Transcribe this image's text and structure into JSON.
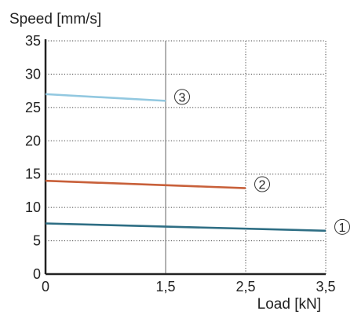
{
  "chart_data": {
    "type": "line",
    "ylabel": "Speed [mm/s]",
    "xlabel": "Load [kN]",
    "xlim": [
      0,
      3.5
    ],
    "ylim": [
      0,
      35
    ],
    "x_ticks": [
      "0",
      "1,5",
      "2,5",
      "3,5"
    ],
    "x_tick_values": [
      0,
      1.5,
      2.5,
      3.5
    ],
    "y_ticks": [
      "0",
      "5",
      "10",
      "15",
      "20",
      "25",
      "30",
      "35"
    ],
    "y_tick_values": [
      0,
      5,
      10,
      15,
      20,
      25,
      30,
      35
    ],
    "grid": "dotted",
    "series": [
      {
        "name": "①",
        "color": "#2e6e84",
        "x": [
          0,
          3.5
        ],
        "y": [
          7.6,
          6.5
        ]
      },
      {
        "name": "②",
        "color": "#c8603a",
        "x": [
          0,
          2.5
        ],
        "y": [
          14.0,
          12.9
        ]
      },
      {
        "name": "③",
        "color": "#92c8e0",
        "x": [
          0,
          1.5
        ],
        "y": [
          27.0,
          26.0
        ]
      }
    ]
  }
}
